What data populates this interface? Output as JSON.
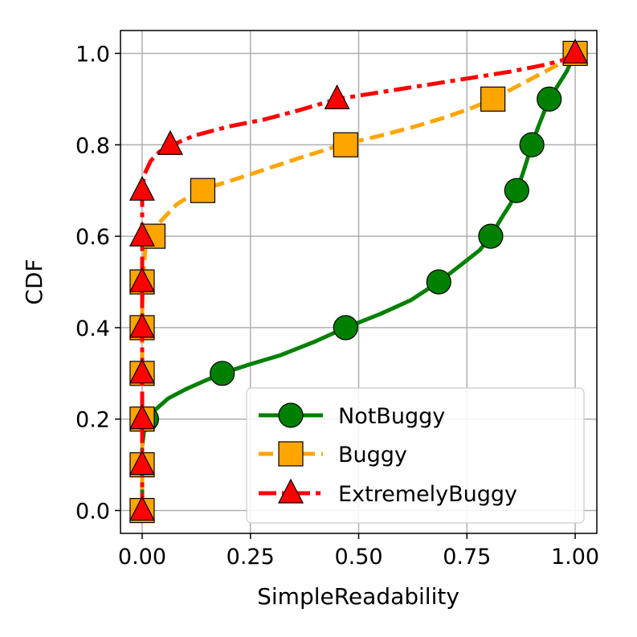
{
  "chart_data": {
    "type": "line",
    "title": "",
    "xlabel": "SimpleReadability",
    "ylabel": "CDF",
    "xlim": [
      -0.05,
      1.05
    ],
    "ylim": [
      -0.05,
      1.05
    ],
    "grid": true,
    "legend_position": "lower-right",
    "x_ticks": [
      "0.00",
      "0.25",
      "0.50",
      "0.75",
      "1.00"
    ],
    "y_ticks": [
      "0.0",
      "0.2",
      "0.4",
      "0.6",
      "0.8",
      "1.0"
    ],
    "series": [
      {
        "name": "NotBuggy",
        "color": "#008000",
        "linestyle": "solid",
        "marker": "circle",
        "curve": [
          [
            0.0,
            0.0
          ],
          [
            0.0,
            0.14
          ],
          [
            0.005,
            0.18
          ],
          [
            0.01,
            0.2
          ],
          [
            0.03,
            0.22
          ],
          [
            0.06,
            0.245
          ],
          [
            0.1,
            0.265
          ],
          [
            0.14,
            0.282
          ],
          [
            0.185,
            0.3
          ],
          [
            0.25,
            0.32
          ],
          [
            0.32,
            0.34
          ],
          [
            0.4,
            0.37
          ],
          [
            0.47,
            0.4
          ],
          [
            0.55,
            0.43
          ],
          [
            0.62,
            0.46
          ],
          [
            0.685,
            0.5
          ],
          [
            0.74,
            0.54
          ],
          [
            0.78,
            0.57
          ],
          [
            0.805,
            0.6
          ],
          [
            0.83,
            0.64
          ],
          [
            0.85,
            0.67
          ],
          [
            0.865,
            0.7
          ],
          [
            0.88,
            0.74
          ],
          [
            0.9,
            0.8
          ],
          [
            0.915,
            0.84
          ],
          [
            0.94,
            0.9
          ],
          [
            0.96,
            0.93
          ],
          [
            0.98,
            0.96
          ],
          [
            1.0,
            1.0
          ]
        ],
        "markers": [
          [
            0.0,
            0.0
          ],
          [
            0.0,
            0.1
          ],
          [
            0.01,
            0.2
          ],
          [
            0.185,
            0.3
          ],
          [
            0.47,
            0.4
          ],
          [
            0.685,
            0.5
          ],
          [
            0.805,
            0.6
          ],
          [
            0.865,
            0.7
          ],
          [
            0.9,
            0.8
          ],
          [
            0.94,
            0.9
          ],
          [
            1.0,
            1.0
          ]
        ]
      },
      {
        "name": "Buggy",
        "color": "#FFA500",
        "linestyle": "dashed",
        "marker": "square",
        "curve": [
          [
            0.0,
            0.0
          ],
          [
            0.0,
            0.45
          ],
          [
            0.003,
            0.52
          ],
          [
            0.008,
            0.58
          ],
          [
            0.02,
            0.6
          ],
          [
            0.04,
            0.63
          ],
          [
            0.08,
            0.67
          ],
          [
            0.13,
            0.7
          ],
          [
            0.2,
            0.72
          ],
          [
            0.28,
            0.745
          ],
          [
            0.36,
            0.77
          ],
          [
            0.46,
            0.8
          ],
          [
            0.55,
            0.82
          ],
          [
            0.63,
            0.84
          ],
          [
            0.7,
            0.86
          ],
          [
            0.76,
            0.88
          ],
          [
            0.81,
            0.9
          ],
          [
            0.86,
            0.925
          ],
          [
            0.92,
            0.955
          ],
          [
            0.96,
            0.975
          ],
          [
            1.0,
            1.0
          ]
        ],
        "markers": [
          [
            0.0,
            0.0
          ],
          [
            0.0,
            0.1
          ],
          [
            0.0,
            0.2
          ],
          [
            0.0,
            0.3
          ],
          [
            0.0,
            0.4
          ],
          [
            0.0,
            0.5
          ],
          [
            0.025,
            0.6
          ],
          [
            0.14,
            0.7
          ],
          [
            0.47,
            0.8
          ],
          [
            0.81,
            0.9
          ],
          [
            1.0,
            1.0
          ]
        ]
      },
      {
        "name": "ExtremelyBuggy",
        "color": "#FF0000",
        "linestyle": "dashdot",
        "marker": "triangle",
        "curve": [
          [
            0.0,
            0.0
          ],
          [
            0.0,
            0.7
          ],
          [
            0.005,
            0.735
          ],
          [
            0.02,
            0.765
          ],
          [
            0.04,
            0.785
          ],
          [
            0.07,
            0.8
          ],
          [
            0.12,
            0.82
          ],
          [
            0.2,
            0.84
          ],
          [
            0.28,
            0.855
          ],
          [
            0.36,
            0.875
          ],
          [
            0.45,
            0.9
          ],
          [
            0.55,
            0.915
          ],
          [
            0.65,
            0.93
          ],
          [
            0.75,
            0.945
          ],
          [
            0.85,
            0.96
          ],
          [
            0.93,
            0.975
          ],
          [
            0.97,
            0.985
          ],
          [
            1.0,
            1.0
          ]
        ],
        "markers": [
          [
            0.0,
            0.0
          ],
          [
            0.0,
            0.1
          ],
          [
            0.0,
            0.2
          ],
          [
            0.0,
            0.3
          ],
          [
            0.0,
            0.4
          ],
          [
            0.0,
            0.5
          ],
          [
            0.0,
            0.6
          ],
          [
            0.0,
            0.7
          ],
          [
            0.065,
            0.8
          ],
          [
            0.45,
            0.9
          ],
          [
            1.0,
            1.0
          ]
        ]
      }
    ]
  }
}
